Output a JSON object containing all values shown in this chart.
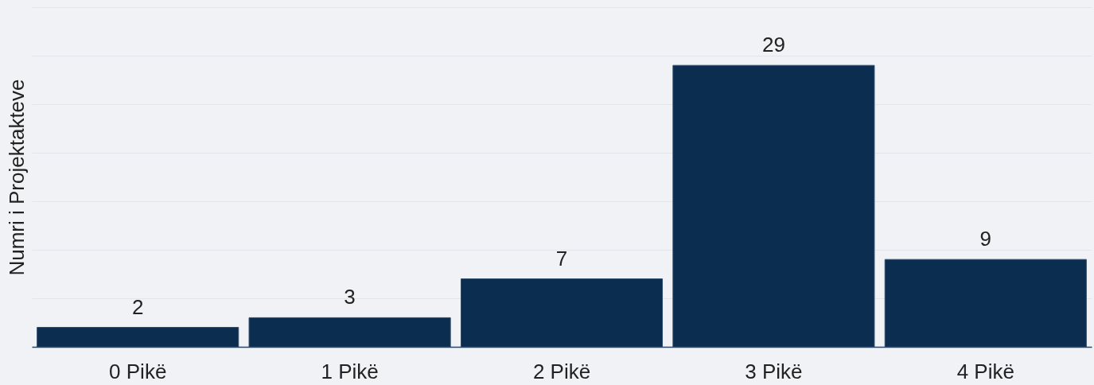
{
  "chart_data": {
    "type": "bar",
    "ylabel": "Numri i Projektakteve",
    "categories": [
      "0 Pikë",
      "1 Pikë",
      "2 Pikë",
      "3 Pikë",
      "4 Pikë"
    ],
    "values": [
      2,
      3,
      7,
      29,
      9
    ],
    "color": "#0b2d4f",
    "ylim": [
      0,
      35
    ],
    "yticks": [
      {
        "value": 0,
        "label": null
      },
      {
        "value": 5,
        "label": null
      },
      {
        "value": 10,
        "label": null
      },
      {
        "value": 15,
        "label": null
      },
      {
        "value": 20,
        "label": null
      },
      {
        "value": 25,
        "label": null
      },
      {
        "value": 30,
        "label": null
      },
      {
        "value": 35,
        "label": null
      }
    ],
    "grid": "y",
    "tick_labels": "x",
    "data_labels": true
  }
}
